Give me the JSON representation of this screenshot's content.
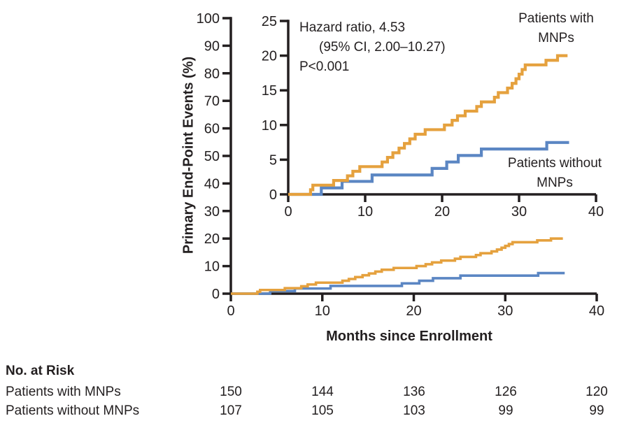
{
  "figure": {
    "ylabel": "Primary End-Point Events (%)",
    "xlabel": "Months since Enrollment"
  },
  "annotation": {
    "line1": "Hazard ratio, 4.53",
    "line2": "(95% CI, 2.00–10.27)",
    "line3": "P<0.001"
  },
  "series_labels": {
    "with_mnps": {
      "line1": "Patients with",
      "line2": "MNPs"
    },
    "without_mnps": {
      "line1": "Patients without",
      "line2": "MNPs"
    }
  },
  "at_risk": {
    "header": "No. at Risk",
    "rows": [
      {
        "label": "Patients with MNPs",
        "values": [
          "150",
          "144",
          "136",
          "126",
          "120"
        ]
      },
      {
        "label": "Patients without MNPs",
        "values": [
          "107",
          "105",
          "103",
          "99",
          "99"
        ]
      }
    ]
  },
  "colors": {
    "with_mnps": "#E5A13E",
    "without_mnps": "#5B86C3",
    "axis": "#231F20",
    "text": "#231F20"
  },
  "chart_data": {
    "type": "line",
    "subtype": "kaplan-meier-cumulative-incidence-step",
    "title": "",
    "xlabel": "Months since Enrollment",
    "ylabel": "Primary End-Point Events (%)",
    "annotation": [
      "Hazard ratio, 4.53",
      "(95% CI, 2.00–10.27)",
      "P<0.001"
    ],
    "main_axis": {
      "xlim": [
        0,
        40
      ],
      "ylim": [
        0,
        100
      ],
      "xticks": [
        0,
        10,
        20,
        30,
        40
      ],
      "yticks": [
        0,
        10,
        20,
        30,
        40,
        50,
        60,
        70,
        80,
        90,
        100
      ],
      "grid": false
    },
    "inset_axis": {
      "xlim": [
        0,
        40
      ],
      "ylim": [
        0,
        25
      ],
      "xticks": [
        0,
        10,
        20,
        30,
        40
      ],
      "yticks": [
        0,
        5,
        10,
        15,
        20,
        25
      ],
      "grid": false
    },
    "series": [
      {
        "name": "Patients with MNPs",
        "color": "#E5A13E",
        "start": [
          0,
          0
        ],
        "end_x": 36.3,
        "steps": [
          [
            2.9,
            0.67
          ],
          [
            3.2,
            1.33
          ],
          [
            5.9,
            2.0
          ],
          [
            7.7,
            2.67
          ],
          [
            8.4,
            3.33
          ],
          [
            9.3,
            4.0
          ],
          [
            12.2,
            4.67
          ],
          [
            12.9,
            5.33
          ],
          [
            13.6,
            6.0
          ],
          [
            14.4,
            6.67
          ],
          [
            15.1,
            7.33
          ],
          [
            15.8,
            8.0
          ],
          [
            16.5,
            8.67
          ],
          [
            17.8,
            9.33
          ],
          [
            20.3,
            10.0
          ],
          [
            21.3,
            10.67
          ],
          [
            22.0,
            11.33
          ],
          [
            23.0,
            12.0
          ],
          [
            24.5,
            12.67
          ],
          [
            25.1,
            13.33
          ],
          [
            26.8,
            14.0
          ],
          [
            27.3,
            14.67
          ],
          [
            28.5,
            15.33
          ],
          [
            29.1,
            16.0
          ],
          [
            29.6,
            16.67
          ],
          [
            30.0,
            17.33
          ],
          [
            30.4,
            18.0
          ],
          [
            30.8,
            18.67
          ],
          [
            33.5,
            19.33
          ],
          [
            35.0,
            20.0
          ]
        ]
      },
      {
        "name": "Patients without MNPs",
        "color": "#5B86C3",
        "start": [
          0,
          0
        ],
        "end_x": 36.5,
        "steps": [
          [
            4.3,
            0.93
          ],
          [
            7.0,
            1.87
          ],
          [
            10.9,
            2.8
          ],
          [
            18.7,
            3.74
          ],
          [
            20.6,
            4.67
          ],
          [
            22.1,
            5.61
          ],
          [
            25.1,
            6.54
          ],
          [
            33.6,
            7.48
          ]
        ]
      }
    ],
    "legend_position": "labels-on-plot"
  }
}
